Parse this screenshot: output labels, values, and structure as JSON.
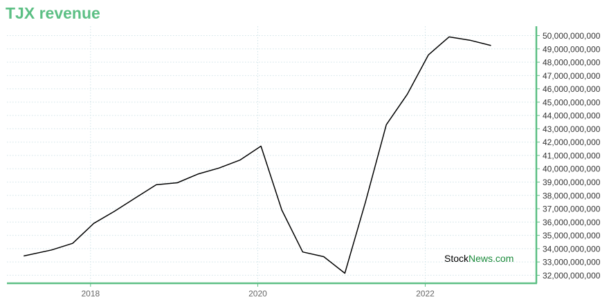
{
  "chart_data": {
    "type": "line",
    "title": "TJX revenue",
    "xlabel": "",
    "ylabel": "",
    "x": [
      "2017-03",
      "2017-07",
      "2017-10",
      "2018-01",
      "2018-04",
      "2018-07",
      "2018-10",
      "2019-01",
      "2019-04",
      "2019-07",
      "2019-10",
      "2020-01",
      "2020-04",
      "2020-07",
      "2020-10",
      "2021-01",
      "2021-04",
      "2021-07",
      "2021-10",
      "2022-01",
      "2022-04",
      "2022-07",
      "2022-10"
    ],
    "series": [
      {
        "values": [
          33450000000,
          33900000000,
          34400000000,
          35900000000,
          36800000000,
          37800000000,
          38800000000,
          38950000000,
          39600000000,
          40050000000,
          40650000000,
          41700000000,
          36900000000,
          33750000000,
          33400000000,
          32150000000,
          37500000000,
          43300000000,
          45600000000,
          48550000000,
          49900000000,
          49650000000,
          49250000000
        ],
        "color": "#000000"
      }
    ],
    "xticks": [
      "2018",
      "2020",
      "2022"
    ],
    "yticks": [
      "32,000,000,000",
      "33,000,000,000",
      "34,000,000,000",
      "35,000,000,000",
      "36,000,000,000",
      "37,000,000,000",
      "38,000,000,000",
      "39,000,000,000",
      "40,000,000,000",
      "41,000,000,000",
      "42,000,000,000",
      "43,000,000,000",
      "44,000,000,000",
      "45,000,000,000",
      "46,000,000,000",
      "47,000,000,000",
      "48,000,000,000",
      "49,000,000,000",
      "50,000,000,000"
    ],
    "ylim": [
      31400000000,
      50700000000
    ],
    "xlim": [
      "2017-01-01",
      "2023-05-01"
    ],
    "grid": true,
    "legend": "none",
    "colors": {
      "title": "#5cbf84",
      "axis": "#5cbf84",
      "grid": "#cfe3e8",
      "line": "#000000"
    }
  },
  "watermark": {
    "part1": "Stock",
    "part2": "News.com"
  }
}
